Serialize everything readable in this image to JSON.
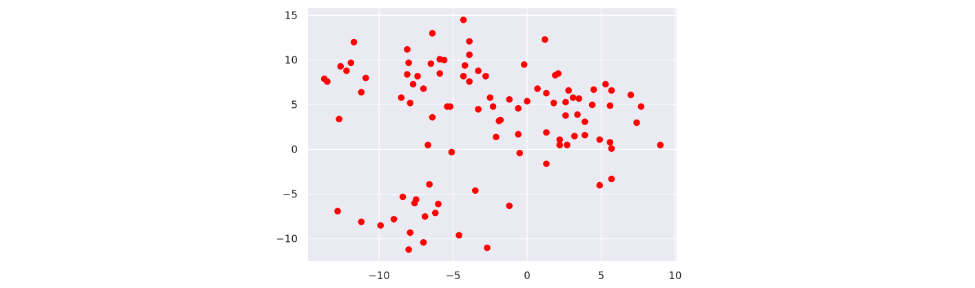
{
  "chart_data": {
    "type": "scatter",
    "title": "",
    "xlabel": "",
    "ylabel": "",
    "xlim": [
      -14.8,
      10.1
    ],
    "ylim": [
      -12.5,
      15.8
    ],
    "xticks": [
      -10,
      -5,
      0,
      5,
      10
    ],
    "yticks": [
      -10,
      -5,
      0,
      5,
      10,
      15
    ],
    "xtick_labels": [
      "−10",
      "−5",
      "0",
      "5",
      "10"
    ],
    "ytick_labels": [
      "−10",
      "−5",
      "0",
      "5",
      "10",
      "15"
    ],
    "grid": true,
    "background_color": "#eaeaf2",
    "grid_color": "#ffffff",
    "marker_color": "#ff0000",
    "series": [
      {
        "points": [
          [
            -13.7,
            7.9
          ],
          [
            -13.5,
            7.6
          ],
          [
            -12.6,
            9.3
          ],
          [
            -12.2,
            8.8
          ],
          [
            -11.9,
            9.7
          ],
          [
            -11.7,
            12.0
          ],
          [
            -11.2,
            6.4
          ],
          [
            -10.9,
            8.0
          ],
          [
            -12.7,
            3.4
          ],
          [
            -12.8,
            -6.9
          ],
          [
            -11.2,
            -8.1
          ],
          [
            -9.9,
            -8.5
          ],
          [
            -9.0,
            -7.8
          ],
          [
            -8.1,
            11.2
          ],
          [
            -8.0,
            9.7
          ],
          [
            -8.1,
            8.4
          ],
          [
            -7.7,
            7.3
          ],
          [
            -7.4,
            8.2
          ],
          [
            -7.0,
            6.8
          ],
          [
            -8.5,
            5.8
          ],
          [
            -7.9,
            5.2
          ],
          [
            -6.4,
            13.0
          ],
          [
            -6.5,
            9.6
          ],
          [
            -5.9,
            10.1
          ],
          [
            -5.6,
            10.0
          ],
          [
            -5.9,
            8.5
          ],
          [
            -5.4,
            4.8
          ],
          [
            -5.2,
            4.8
          ],
          [
            -6.4,
            3.6
          ],
          [
            -6.7,
            0.5
          ],
          [
            -5.1,
            -0.3
          ],
          [
            -6.6,
            -3.9
          ],
          [
            -8.4,
            -5.3
          ],
          [
            -7.5,
            -5.6
          ],
          [
            -7.6,
            -6.0
          ],
          [
            -6.0,
            -6.1
          ],
          [
            -6.2,
            -7.1
          ],
          [
            -6.9,
            -7.5
          ],
          [
            -7.9,
            -9.3
          ],
          [
            -7.0,
            -10.4
          ],
          [
            -8.0,
            -11.2
          ],
          [
            -4.6,
            -9.6
          ],
          [
            -4.3,
            14.5
          ],
          [
            -3.9,
            12.1
          ],
          [
            -3.9,
            10.6
          ],
          [
            -4.2,
            9.4
          ],
          [
            -4.3,
            8.2
          ],
          [
            -3.9,
            7.6
          ],
          [
            -3.3,
            8.8
          ],
          [
            -2.8,
            8.2
          ],
          [
            -2.5,
            5.8
          ],
          [
            -2.3,
            4.8
          ],
          [
            -3.3,
            4.5
          ],
          [
            -1.9,
            3.2
          ],
          [
            -1.8,
            3.3
          ],
          [
            -2.1,
            1.4
          ],
          [
            -3.5,
            -4.6
          ],
          [
            -1.2,
            -6.3
          ],
          [
            -2.7,
            -11.0
          ],
          [
            -1.2,
            5.6
          ],
          [
            -0.6,
            4.6
          ],
          [
            -0.6,
            1.7
          ],
          [
            -0.5,
            -0.4
          ],
          [
            -0.2,
            9.5
          ],
          [
            0.0,
            5.4
          ],
          [
            0.7,
            6.8
          ],
          [
            1.2,
            12.3
          ],
          [
            1.3,
            6.3
          ],
          [
            1.8,
            5.2
          ],
          [
            1.9,
            8.3
          ],
          [
            2.1,
            8.5
          ],
          [
            1.3,
            1.9
          ],
          [
            2.2,
            1.1
          ],
          [
            2.2,
            0.5
          ],
          [
            2.7,
            0.5
          ],
          [
            1.3,
            -1.6
          ],
          [
            2.6,
            5.3
          ],
          [
            2.8,
            6.6
          ],
          [
            3.1,
            5.8
          ],
          [
            3.5,
            5.7
          ],
          [
            2.6,
            3.8
          ],
          [
            3.4,
            3.9
          ],
          [
            3.9,
            3.1
          ],
          [
            3.2,
            1.5
          ],
          [
            3.9,
            1.6
          ],
          [
            4.5,
            6.7
          ],
          [
            4.4,
            5.0
          ],
          [
            5.3,
            7.3
          ],
          [
            5.7,
            6.6
          ],
          [
            5.6,
            4.9
          ],
          [
            4.9,
            1.1
          ],
          [
            5.6,
            0.8
          ],
          [
            5.7,
            0.1
          ],
          [
            4.9,
            -4.0
          ],
          [
            5.7,
            -3.3
          ],
          [
            7.0,
            6.1
          ],
          [
            7.7,
            4.8
          ],
          [
            7.4,
            3.0
          ],
          [
            9.0,
            0.5
          ]
        ]
      }
    ]
  }
}
